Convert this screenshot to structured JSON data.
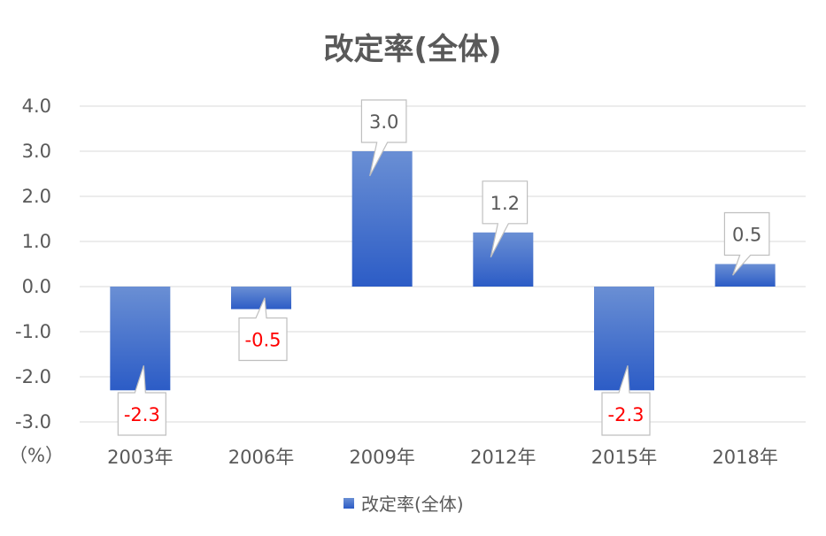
{
  "chart_data": {
    "type": "bar",
    "title": "改定率(全体)",
    "ylabel": "",
    "xlabel": "",
    "unit_label": "（%）",
    "categories": [
      "2003年",
      "2006年",
      "2009年",
      "2012年",
      "2015年",
      "2018年"
    ],
    "series": [
      {
        "name": "改定率(全体)",
        "values": [
          -2.3,
          -0.5,
          3.0,
          1.2,
          -2.3,
          0.5
        ]
      }
    ],
    "data_labels": [
      "-2.3",
      "-0.5",
      "3.0",
      "1.2",
      "-2.3",
      "0.5"
    ],
    "y_ticks": [
      "4.0",
      "3.0",
      "2.0",
      "1.0",
      "0.0",
      "-1.0",
      "-2.0",
      "-3.0"
    ],
    "ylim": [
      -3.0,
      4.0
    ],
    "grid": true,
    "legend_position": "bottom",
    "colors": {
      "bar_top": "#6a8fd4",
      "bar_bottom": "#2c5cc6",
      "negative_text": "#ff0000",
      "text": "#595959",
      "grid": "#d9d9d9"
    }
  }
}
